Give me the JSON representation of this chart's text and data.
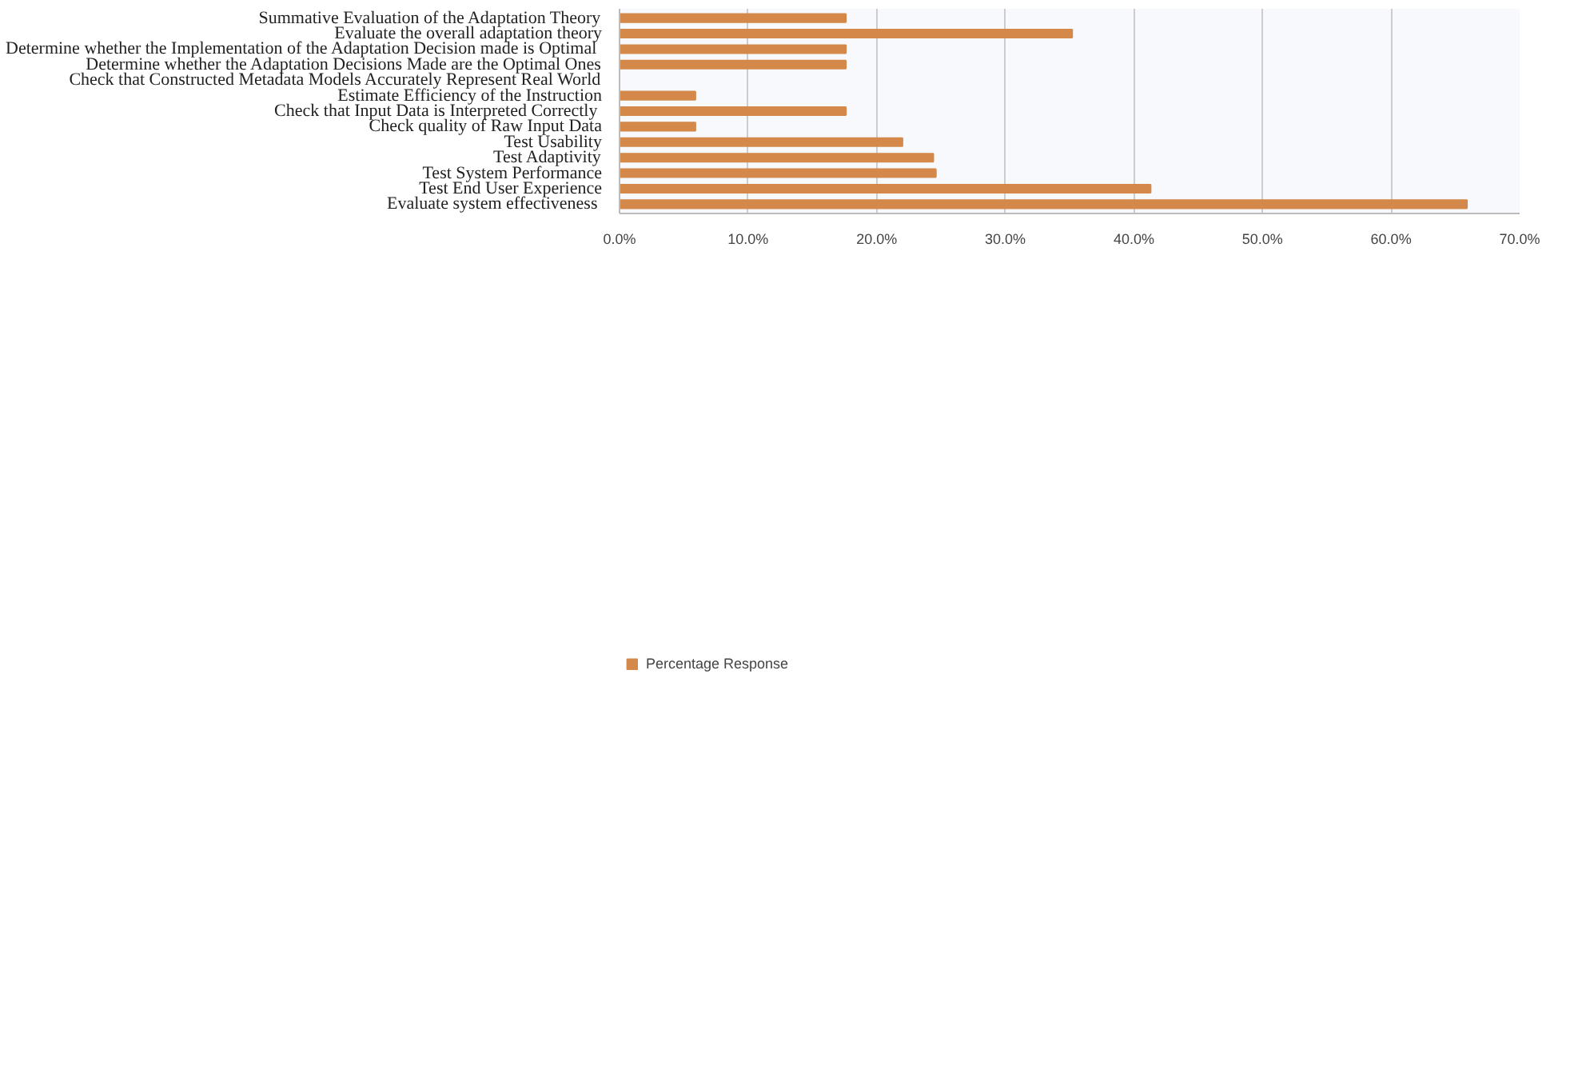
{
  "chart_data": {
    "type": "bar",
    "orientation": "horizontal",
    "categories": [
      "Summative Evaluation of the Adaptation Theory",
      "Evaluate the overall adaptation theory",
      "Determine whether the Implementation of the Adaptation Decision  made is Optimal",
      "Determine whether the Adaptation Decisions Made are the Optimal Ones",
      "Check that Constructed Metadata Models Accurately Represent Real World",
      "Estimate Efficiency of the Instruction",
      "Check that Input Data is  Interpreted Correctly",
      "Check quality of Raw Input Data",
      "Test Usability",
      "Test Adaptivity",
      "Test System Performance",
      "Test End User Experience",
      "Evaluate  system effectiveness"
    ],
    "series": [
      {
        "name": "Percentage Response",
        "color": "#d4894a",
        "values": [
          17.6,
          35.2,
          17.6,
          17.6,
          0,
          5.9,
          17.6,
          5.9,
          22.0,
          24.4,
          24.6,
          41.3,
          65.9
        ]
      }
    ],
    "xlim": [
      0,
      70
    ],
    "xticks": [
      {
        "value": 0,
        "label": "0.0%"
      },
      {
        "value": 10,
        "label": "10.0%"
      },
      {
        "value": 20,
        "label": "20.0%"
      },
      {
        "value": 30,
        "label": "30.0%"
      },
      {
        "value": 40,
        "label": "40.0%"
      },
      {
        "value": 50,
        "label": "50.0%"
      },
      {
        "value": 60,
        "label": "60.0%"
      },
      {
        "value": 70,
        "label": "70.0%"
      }
    ],
    "grid": "x",
    "legend": "bottom left"
  }
}
